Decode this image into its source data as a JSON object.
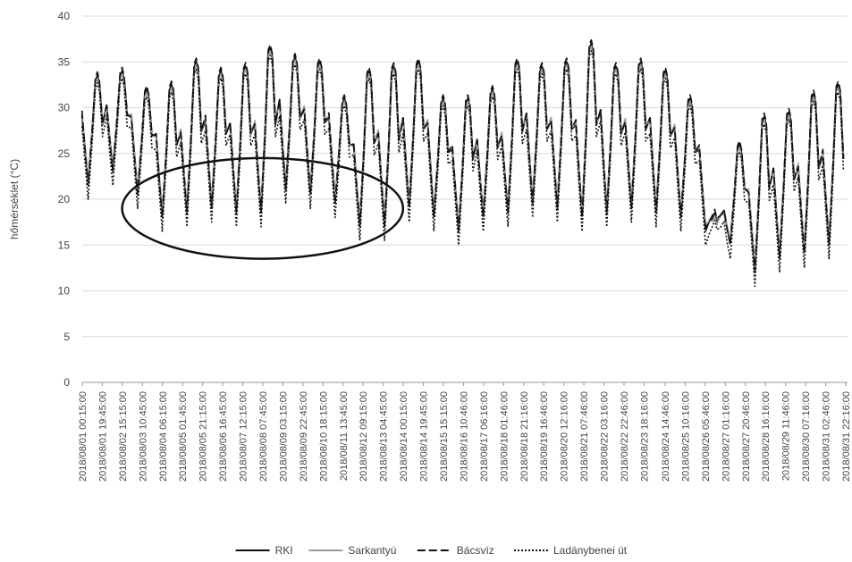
{
  "chart_data": {
    "type": "line",
    "title": "",
    "xlabel": "",
    "ylabel": "hőmérséklet (°C)",
    "ylim": [
      0,
      40
    ],
    "yticks": [
      0,
      5,
      10,
      15,
      20,
      25,
      30,
      35,
      40
    ],
    "grid": "horizontal",
    "legend": "bottom",
    "categories": [
      "2018/08/01 00:15:00",
      "2018/08/01 19:45:00",
      "2018/08/02 15:15:00",
      "2018/08/03 10:45:00",
      "2018/08/04 06:15:00",
      "2018/08/05 01:45:00",
      "2018/08/05 21:15:00",
      "2018/08/06 16:45:00",
      "2018/08/07 12:15:00",
      "2018/08/08 07:45:00",
      "2018/08/09 03:15:00",
      "2018/08/09 22:45:00",
      "2018/08/10 18:15:00",
      "2018/08/11 13:45:00",
      "2018/08/12 09:15:00",
      "2018/08/13 04:45:00",
      "2018/08/14 00:15:00",
      "2018/08/14 19:45:00",
      "2018/08/15 15:15:00",
      "2018/08/16 10:46:00",
      "2018/08/17 06:16:00",
      "2018/08/18 01:46:00",
      "2018/08/18 21:16:00",
      "2018/08/19 16:46:00",
      "2018/08/20 12:16:00",
      "2018/08/21 07:46:00",
      "2018/08/22 03:16:00",
      "2018/08/22 22:46:00",
      "2018/08/23 18:16:00",
      "2018/08/24 14:46:00",
      "2018/08/25 10:16:00",
      "2018/08/26 05:46:00",
      "2018/08/27 01:16:00",
      "2018/08/27 20:46:00",
      "2018/08/28 16:16:00",
      "2018/08/29 11:46:00",
      "2018/08/30 07:16:00",
      "2018/08/31 02:46:00",
      "2018/08/31 22:16:00"
    ],
    "x_range": [
      "2018/08/01 00:15:00",
      "2018/09/01 00:00:00"
    ],
    "daily_extremes": [
      {
        "date": "2018/08/01",
        "max": 33.5,
        "min": 21.0
      },
      {
        "date": "2018/08/02",
        "max": 34.0,
        "min": 22.5
      },
      {
        "date": "2018/08/03",
        "max": 32.0,
        "min": 20.0
      },
      {
        "date": "2018/08/04",
        "max": 32.5,
        "min": 17.5
      },
      {
        "date": "2018/08/05",
        "max": 35.0,
        "min": 18.0
      },
      {
        "date": "2018/08/06",
        "max": 34.0,
        "min": 18.5
      },
      {
        "date": "2018/08/07",
        "max": 34.5,
        "min": 18.0
      },
      {
        "date": "2018/08/08",
        "max": 36.5,
        "min": 18.0
      },
      {
        "date": "2018/08/09",
        "max": 35.5,
        "min": 20.5
      },
      {
        "date": "2018/08/10",
        "max": 35.0,
        "min": 20.0
      },
      {
        "date": "2018/08/11",
        "max": 31.0,
        "min": 19.0
      },
      {
        "date": "2018/08/12",
        "max": 34.0,
        "min": 16.5
      },
      {
        "date": "2018/08/13",
        "max": 34.5,
        "min": 16.5
      },
      {
        "date": "2018/08/14",
        "max": 35.0,
        "min": 18.5
      },
      {
        "date": "2018/08/15",
        "max": 31.0,
        "min": 17.5
      },
      {
        "date": "2018/08/16",
        "max": 31.0,
        "min": 16.0
      },
      {
        "date": "2018/08/17",
        "max": 32.0,
        "min": 17.5
      },
      {
        "date": "2018/08/18",
        "max": 35.0,
        "min": 18.0
      },
      {
        "date": "2018/08/19",
        "max": 34.5,
        "min": 19.0
      },
      {
        "date": "2018/08/20",
        "max": 35.0,
        "min": 18.5
      },
      {
        "date": "2018/08/21",
        "max": 37.0,
        "min": 17.5
      },
      {
        "date": "2018/08/22",
        "max": 34.5,
        "min": 18.0
      },
      {
        "date": "2018/08/23",
        "max": 35.0,
        "min": 18.5
      },
      {
        "date": "2018/08/24",
        "max": 34.0,
        "min": 18.0
      },
      {
        "date": "2018/08/25",
        "max": 31.0,
        "min": 17.5
      },
      {
        "date": "2018/08/26",
        "max": 18.5,
        "min": 16.0
      },
      {
        "date": "2018/08/27",
        "max": 26.0,
        "min": 14.5
      },
      {
        "date": "2018/08/28",
        "max": 29.0,
        "min": 11.5
      },
      {
        "date": "2018/08/29",
        "max": 29.5,
        "min": 13.0
      },
      {
        "date": "2018/08/30",
        "max": 31.5,
        "min": 13.5
      },
      {
        "date": "2018/08/31",
        "max": 32.5,
        "min": 14.5
      }
    ],
    "series": [
      {
        "name": "RKI",
        "style": "solid",
        "color": "#111111",
        "max_offset": 0.0,
        "min_offset": 0.8
      },
      {
        "name": "Sarkantyú",
        "style": "solid",
        "color": "#9a9a9a",
        "max_offset": -0.3,
        "min_offset": 1.2
      },
      {
        "name": "Bácsvíz",
        "style": "dashed",
        "color": "#111111",
        "max_offset": 0.4,
        "min_offset": 0.5
      },
      {
        "name": "Ladánybenei út",
        "style": "dotted",
        "color": "#111111",
        "max_offset": -0.8,
        "min_offset": -1.0
      }
    ],
    "annotations": [
      {
        "type": "ellipse",
        "x_from": "2018/08/02 15:00:00",
        "x_to": "2018/08/14 00:00:00",
        "y_from": 13.5,
        "y_to": 24.5
      }
    ]
  }
}
